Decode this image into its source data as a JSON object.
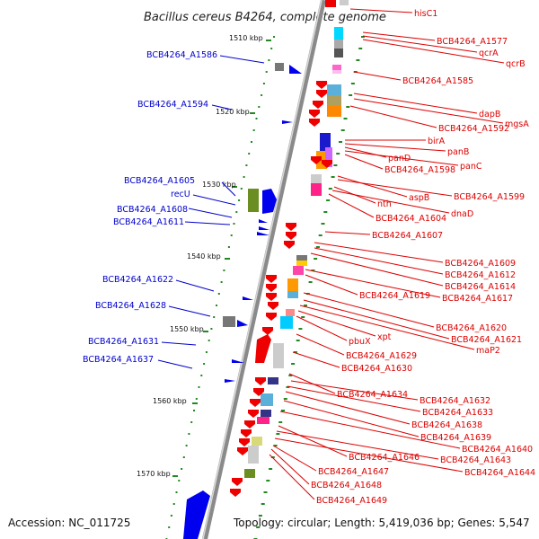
{
  "title": "Bacillus cereus B4264, complete genome",
  "footer": {
    "accession": "Accession: NC_011725",
    "topology": "Topology: circular; Length: 5,419,036 bp; Genes: 5,547"
  },
  "colors": {
    "backbone": "#888888",
    "left_label": "#0000cc",
    "right_label": "#dd0000",
    "tick": "#228822"
  },
  "ticks": [
    "1510 kbp",
    "1520 kbp",
    "1530 kbp",
    "1540 kbp",
    "1550 kbp",
    "1560 kbp",
    "1570 kbp"
  ],
  "left_labels": [
    "BCB4264_A1586",
    "BCB4264_A1594",
    "BCB4264_A1605",
    "recU",
    "BCB4264_A1608",
    "BCB4264_A1611",
    "BCB4264_A1622",
    "BCB4264_A1628",
    "BCB4264_A1631",
    "BCB4264_A1637"
  ],
  "right_labels": [
    "hisC1",
    "BCB4264_A1577",
    "qcrA",
    "qcrB",
    "BCB4264_A1585",
    "dapB",
    "mgsA",
    "BCB4264_A1592",
    "birA",
    "panB",
    "panD",
    "panC",
    "BCB4264_A1598",
    "aspB",
    "BCB4264_A1599",
    "nth",
    "dnaD",
    "BCB4264_A1604",
    "BCB4264_A1607",
    "BCB4264_A1609",
    "BCB4264_A1612",
    "BCB4264_A1614",
    "BCB4264_A1617",
    "BCB4264_A1619",
    "BCB4264_A1620",
    "BCB4264_A1621",
    "xpt",
    "pbuX",
    "maP2",
    "BCB4264_A1629",
    "BCB4264_A1630",
    "BCB4264_A1634",
    "BCB4264_A1632",
    "BCB4264_A1633",
    "BCB4264_A1638",
    "BCB4264_A1639",
    "BCB4264_A1640",
    "BCB4264_A1646",
    "BCB4264_A1643",
    "BCB4264_A1644",
    "BCB4264_A1647",
    "BCB4264_A1648",
    "BCB4264_A1649"
  ]
}
